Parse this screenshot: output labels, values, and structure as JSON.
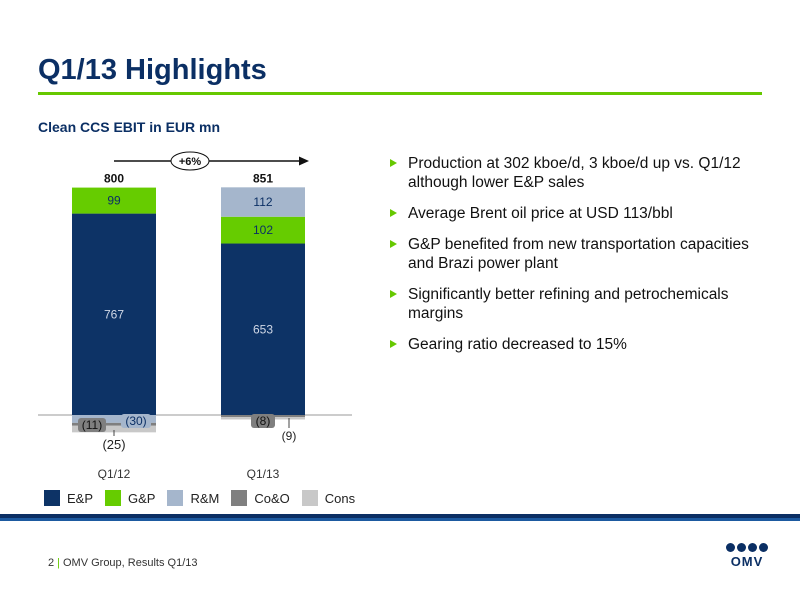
{
  "header": {
    "title": "Q1/13 Highlights"
  },
  "chart_data": {
    "type": "bar",
    "stacked": true,
    "title": "Clean CCS EBIT in EUR mn",
    "categories": [
      "Q1/12",
      "Q1/13"
    ],
    "totals": [
      800,
      851
    ],
    "growth_label": "+6%",
    "series": [
      {
        "name": "E&P",
        "color": "#0d3366",
        "values": [
          767,
          653
        ],
        "labels": [
          "767",
          "653"
        ],
        "label_color": "#d0d8e6"
      },
      {
        "name": "G&P",
        "color": "#66cc00",
        "values": [
          99,
          102
        ],
        "labels": [
          "99",
          "102"
        ],
        "label_color": "#0b2f64"
      },
      {
        "name": "R&M",
        "color": "#a5b6cc",
        "values": [
          -30,
          112
        ],
        "labels": [
          "(30)",
          "112"
        ],
        "label_color": "#0b2f64"
      },
      {
        "name": "Co&O",
        "color": "#7f7f7f",
        "values": [
          -11,
          -8
        ],
        "labels": [
          "(11)",
          "(8)"
        ],
        "label_color": "#111111"
      },
      {
        "name": "Cons",
        "color": "#c8c8c8",
        "values": [
          -25,
          -9
        ],
        "labels": [
          "(25)",
          "(9)"
        ],
        "label_color": "#222222"
      }
    ]
  },
  "bullets": [
    "Production at 302 kboe/d, 3 kboe/d up vs. Q1/12 although lower E&P sales",
    "Average Brent oil price at USD 113/bbl",
    "G&P benefited from new transportation capacities and Brazi power plant",
    "Significantly better refining and petrochemicals margins",
    "Gearing ratio decreased to 15%"
  ],
  "footer": {
    "page": "2",
    "separator": "|",
    "text": "OMV Group, Results Q1/13"
  },
  "logo": {
    "text": "OMV"
  },
  "colors": {
    "brand_blue": "#0b2f64",
    "accent_green": "#66c800",
    "footer_blue": "#1d5aa0"
  }
}
